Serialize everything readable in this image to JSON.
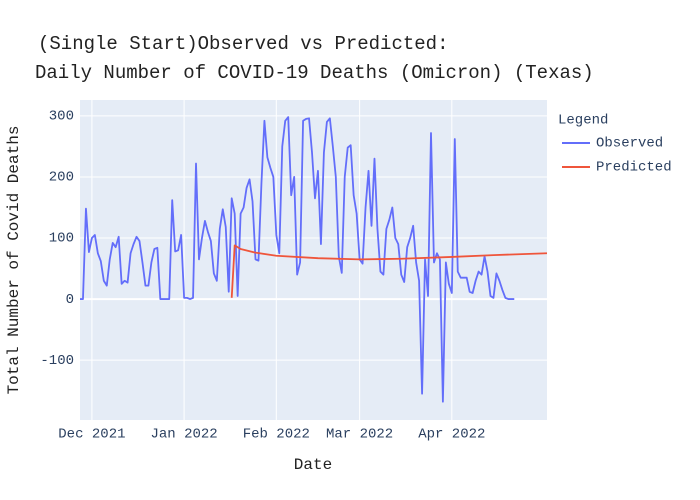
{
  "chart_data": {
    "type": "line",
    "title": [
      "(Single Start)Observed vs Predicted:",
      "Daily Number of COVID-19 Deaths (Omicron) (Texas)"
    ],
    "xlabel": "Date",
    "ylabel": "Total Number of Covid Deaths",
    "legend_title": "Legend",
    "legend": "right",
    "grid": true,
    "xlim": [
      "2021-11-27",
      "2022-05-03"
    ],
    "xticks": [
      {
        "value": "2021-12-01",
        "label": "Dec 2021"
      },
      {
        "value": "2022-01-01",
        "label": "Jan 2022"
      },
      {
        "value": "2022-02-01",
        "label": "Feb 2022"
      },
      {
        "value": "2022-03-01",
        "label": "Mar 2022"
      },
      {
        "value": "2022-04-01",
        "label": "Apr 2022"
      }
    ],
    "ylim": [
      -198,
      326
    ],
    "yticks": [
      -100,
      0,
      100,
      200,
      300
    ],
    "series": [
      {
        "name": "Observed",
        "color": "#636efa",
        "x": [
          "2021-11-27",
          "2021-11-28",
          "2021-11-29",
          "2021-11-30",
          "2021-12-01",
          "2021-12-02",
          "2021-12-03",
          "2021-12-04",
          "2021-12-05",
          "2021-12-06",
          "2021-12-07",
          "2021-12-08",
          "2021-12-09",
          "2021-12-10",
          "2021-12-11",
          "2021-12-12",
          "2021-12-13",
          "2021-12-14",
          "2021-12-15",
          "2021-12-16",
          "2021-12-17",
          "2021-12-18",
          "2021-12-19",
          "2021-12-20",
          "2021-12-21",
          "2021-12-22",
          "2021-12-23",
          "2021-12-24",
          "2021-12-25",
          "2021-12-26",
          "2021-12-27",
          "2021-12-28",
          "2021-12-29",
          "2021-12-30",
          "2021-12-31",
          "2022-01-01",
          "2022-01-02",
          "2022-01-03",
          "2022-01-04",
          "2022-01-05",
          "2022-01-06",
          "2022-01-07",
          "2022-01-08",
          "2022-01-09",
          "2022-01-10",
          "2022-01-11",
          "2022-01-12",
          "2022-01-13",
          "2022-01-14",
          "2022-01-15",
          "2022-01-16",
          "2022-01-17",
          "2022-01-18",
          "2022-01-19",
          "2022-01-20",
          "2022-01-21",
          "2022-01-22",
          "2022-01-23",
          "2022-01-24",
          "2022-01-25",
          "2022-01-26",
          "2022-01-27",
          "2022-01-28",
          "2022-01-29",
          "2022-01-30",
          "2022-01-31",
          "2022-02-01",
          "2022-02-02",
          "2022-02-03",
          "2022-02-04",
          "2022-02-05",
          "2022-02-06",
          "2022-02-07",
          "2022-02-08",
          "2022-02-09",
          "2022-02-10",
          "2022-02-11",
          "2022-02-12",
          "2022-02-13",
          "2022-02-14",
          "2022-02-15",
          "2022-02-16",
          "2022-02-17",
          "2022-02-18",
          "2022-02-19",
          "2022-02-20",
          "2022-02-21",
          "2022-02-22",
          "2022-02-23",
          "2022-02-24",
          "2022-02-25",
          "2022-02-26",
          "2022-02-27",
          "2022-02-28",
          "2022-03-01",
          "2022-03-02",
          "2022-03-03",
          "2022-03-04",
          "2022-03-05",
          "2022-03-06",
          "2022-03-07",
          "2022-03-08",
          "2022-03-09",
          "2022-03-10",
          "2022-03-11",
          "2022-03-12",
          "2022-03-13",
          "2022-03-14",
          "2022-03-15",
          "2022-03-16",
          "2022-03-17",
          "2022-03-18",
          "2022-03-19",
          "2022-03-20",
          "2022-03-21",
          "2022-03-22",
          "2022-03-23",
          "2022-03-24",
          "2022-03-25",
          "2022-03-26",
          "2022-03-27",
          "2022-03-28",
          "2022-03-29",
          "2022-03-30",
          "2022-03-31",
          "2022-04-01",
          "2022-04-02",
          "2022-04-03",
          "2022-04-04",
          "2022-04-05",
          "2022-04-06",
          "2022-04-07",
          "2022-04-08",
          "2022-04-09",
          "2022-04-10",
          "2022-04-11",
          "2022-04-12",
          "2022-04-13",
          "2022-04-14",
          "2022-04-15",
          "2022-04-16",
          "2022-04-17",
          "2022-04-18",
          "2022-04-19",
          "2022-04-20",
          "2022-04-21",
          "2022-04-22"
        ],
        "values": [
          0,
          0,
          148,
          77,
          100,
          105,
          75,
          62,
          30,
          22,
          65,
          92,
          85,
          102,
          25,
          30,
          27,
          75,
          90,
          102,
          95,
          60,
          22,
          22,
          60,
          82,
          84,
          0,
          0,
          0,
          0,
          162,
          78,
          80,
          105,
          2,
          2,
          0,
          2,
          222,
          65,
          100,
          128,
          110,
          95,
          42,
          30,
          115,
          147,
          118,
          12,
          165,
          140,
          5,
          140,
          150,
          182,
          196,
          160,
          65,
          63,
          190,
          292,
          232,
          215,
          200,
          105,
          75,
          250,
          292,
          298,
          170,
          200,
          40,
          60,
          292,
          295,
          296,
          240,
          165,
          210,
          90,
          240,
          290,
          296,
          250,
          200,
          70,
          43,
          200,
          248,
          252,
          170,
          140,
          65,
          58,
          150,
          210,
          120,
          230,
          115,
          45,
          40,
          115,
          130,
          150,
          100,
          90,
          40,
          28,
          85,
          100,
          120,
          60,
          30,
          -155,
          65,
          5,
          272,
          60,
          75,
          65,
          -168,
          60,
          25,
          10,
          262,
          45,
          35,
          35,
          35,
          12,
          10,
          30,
          45,
          40,
          70,
          45,
          5,
          2,
          42,
          30,
          15,
          2,
          0,
          0,
          0
        ]
      },
      {
        "name": "Predicted",
        "color": "#ef553b",
        "x": [
          "2022-01-17",
          "2022-01-18",
          "2022-01-20",
          "2022-01-25",
          "2022-02-01",
          "2022-02-15",
          "2022-03-01",
          "2022-03-15",
          "2022-04-01",
          "2022-04-15",
          "2022-05-03"
        ],
        "values": [
          2,
          88,
          82,
          76,
          71,
          67,
          65,
          66,
          69,
          72,
          75
        ]
      }
    ]
  }
}
